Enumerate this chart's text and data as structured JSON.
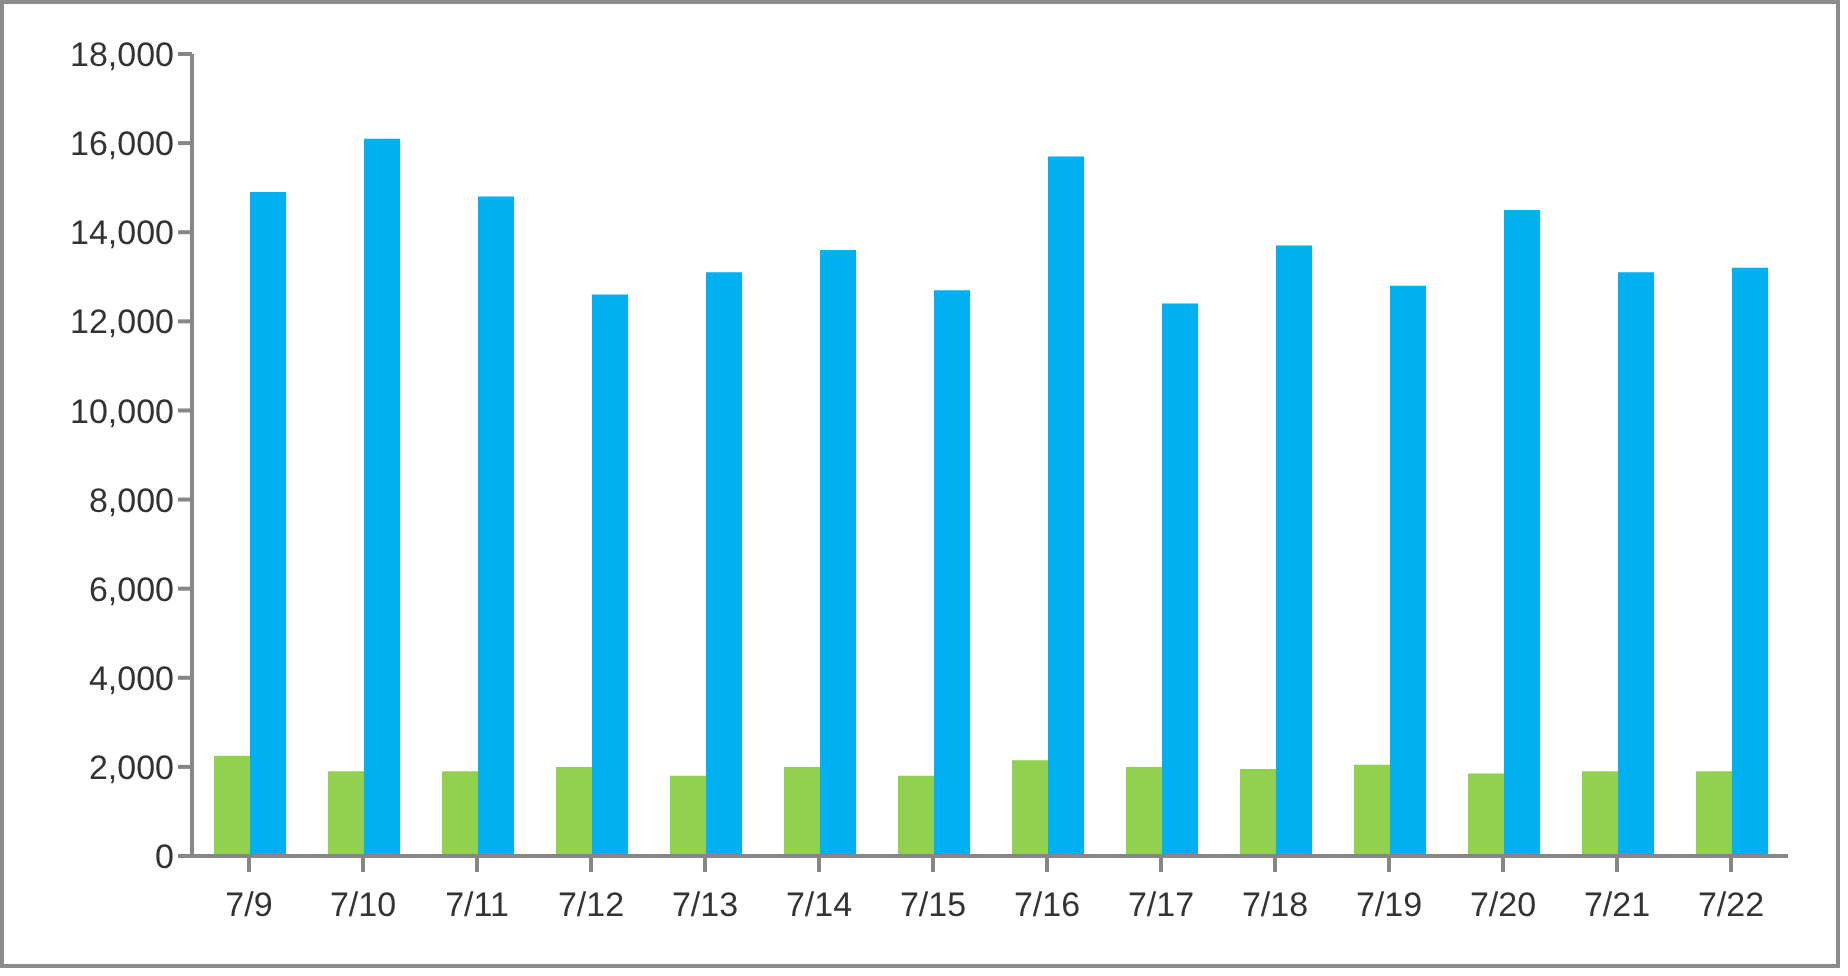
{
  "chart_data": {
    "type": "bar",
    "categories": [
      "7/9",
      "7/10",
      "7/11",
      "7/12",
      "7/13",
      "7/14",
      "7/15",
      "7/16",
      "7/17",
      "7/18",
      "7/19",
      "7/20",
      "7/21",
      "7/22"
    ],
    "series": [
      {
        "color": "#92d050",
        "values": [
          2250,
          1900,
          1900,
          2000,
          1800,
          2000,
          1800,
          2150,
          2000,
          1950,
          2050,
          1850,
          1900,
          1900
        ]
      },
      {
        "color": "#00b0f0",
        "values": [
          14900,
          16100,
          14800,
          12600,
          13100,
          13600,
          12700,
          15700,
          12400,
          13700,
          12800,
          14500,
          13100,
          13200
        ]
      }
    ],
    "ylim": [
      0,
      18000
    ],
    "yticks": [
      0,
      {
        "value": 2000,
        "label": "2,000"
      },
      {
        "value": 4000,
        "label": "4,000"
      },
      {
        "value": 6000,
        "label": "6,000"
      },
      {
        "value": 8000,
        "label": "8,000"
      },
      {
        "value": 10000,
        "label": "10,000"
      },
      {
        "value": 12000,
        "label": "12,000"
      },
      {
        "value": 14000,
        "label": "14,000"
      },
      {
        "value": 16000,
        "label": "16,000"
      },
      {
        "value": 18000,
        "label": "18,000"
      }
    ],
    "grid": false,
    "legend": false
  }
}
